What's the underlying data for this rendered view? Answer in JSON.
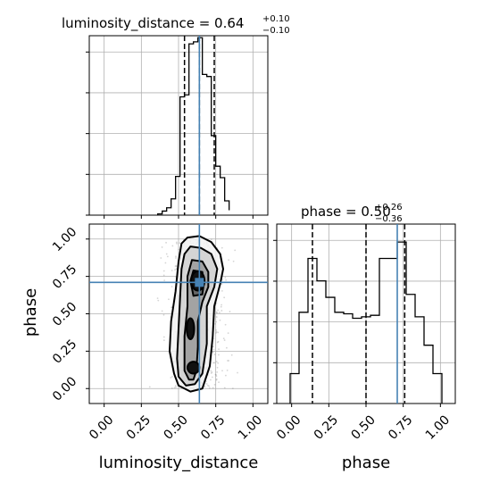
{
  "chart_data": {
    "type": "corner",
    "parameters": [
      "luminosity_distance",
      "phase"
    ],
    "truth": {
      "luminosity_distance": 0.64,
      "phase": 0.71
    },
    "grid": true,
    "panels": [
      {
        "panel": "luminosity_distance-marginal",
        "type": "histogram",
        "title": {
          "main": "luminosity_distance = 0.64",
          "sup": "+0.10",
          "sub": "−0.10"
        },
        "xlim": [
          -0.1,
          1.1
        ],
        "ylim": [
          0,
          4.4
        ],
        "bin_edges": [
          0.36,
          0.39,
          0.42,
          0.45,
          0.48,
          0.51,
          0.54,
          0.57,
          0.6,
          0.63,
          0.66,
          0.69,
          0.72,
          0.75,
          0.78,
          0.81,
          0.84
        ],
        "counts": [
          0.03,
          0.1,
          0.18,
          0.4,
          0.95,
          2.9,
          2.95,
          4.2,
          4.25,
          4.35,
          3.45,
          3.4,
          1.95,
          1.2,
          0.92,
          0.35,
          0.12
        ],
        "quantile_lines": [
          0.54,
          0.64,
          0.74
        ],
        "truth_line": 0.64
      },
      {
        "panel": "phase-marginal",
        "type": "histogram",
        "title": {
          "main": "phase = 0.50",
          "sup": "+0.26",
          "sub": "−0.36"
        },
        "xlim": [
          -0.1,
          1.1
        ],
        "ylim": [
          0,
          1.2
        ],
        "xlabel": "phase",
        "xticks": [
          "0.00",
          "0.25",
          "0.50",
          "0.75",
          "1.00"
        ],
        "bin_edges": [
          -0.01,
          0.05,
          0.11,
          0.17,
          0.23,
          0.29,
          0.35,
          0.41,
          0.47,
          0.53,
          0.59,
          0.65,
          0.71,
          0.77,
          0.83,
          0.89,
          0.95,
          1.01
        ],
        "counts": [
          0.2,
          0.61,
          0.97,
          0.82,
          0.71,
          0.61,
          0.6,
          0.57,
          0.58,
          0.59,
          0.97,
          0.97,
          1.08,
          0.73,
          0.58,
          0.39,
          0.2
        ],
        "quantile_lines": [
          0.14,
          0.5,
          0.76
        ],
        "truth_line": 0.71
      },
      {
        "panel": "phase-vs-luminosity_distance",
        "type": "scatter-contour",
        "xlim": [
          -0.1,
          1.1
        ],
        "ylim": [
          -0.1,
          1.1
        ],
        "xlabel": "luminosity_distance",
        "ylabel": "phase",
        "xticks": [
          "0.00",
          "0.25",
          "0.50",
          "0.75",
          "1.00"
        ],
        "yticks": [
          "0.00",
          "0.25",
          "0.50",
          "0.75",
          "1.00"
        ],
        "contour_levels": [
          {
            "x": [
              0.56,
              0.64,
              0.72,
              0.78,
              0.8,
              0.78,
              0.74,
              0.73,
              0.71,
              0.66,
              0.58,
              0.5,
              0.47,
              0.44,
              0.45,
              0.48,
              0.5,
              0.52
            ],
            "y": [
              1.01,
              1.02,
              0.98,
              0.9,
              0.8,
              0.7,
              0.55,
              0.35,
              0.15,
              0.0,
              -0.02,
              0.02,
              0.1,
              0.25,
              0.45,
              0.65,
              0.85,
              0.97
            ]
          },
          {
            "x": [
              0.58,
              0.65,
              0.72,
              0.76,
              0.74,
              0.69,
              0.69,
              0.66,
              0.61,
              0.55,
              0.5,
              0.49,
              0.5,
              0.51,
              0.52,
              0.54
            ],
            "y": [
              0.95,
              0.94,
              0.9,
              0.8,
              0.68,
              0.55,
              0.3,
              0.1,
              0.03,
              0.02,
              0.08,
              0.2,
              0.4,
              0.6,
              0.8,
              0.9
            ]
          },
          {
            "x": [
              0.59,
              0.66,
              0.7,
              0.7,
              0.66,
              0.63,
              0.63,
              0.62,
              0.6,
              0.57,
              0.54,
              0.54,
              0.56,
              0.56
            ],
            "y": [
              0.86,
              0.85,
              0.78,
              0.68,
              0.58,
              0.45,
              0.28,
              0.12,
              0.06,
              0.06,
              0.12,
              0.35,
              0.55,
              0.75
            ]
          },
          {
            "x": [
              0.6,
              0.66,
              0.67,
              0.66,
              0.6,
              0.58
            ],
            "y": [
              0.79,
              0.78,
              0.7,
              0.63,
              0.62,
              0.72
            ]
          }
        ],
        "density_blobs": [
          {
            "x": 0.63,
            "y": 0.72,
            "w": 0.09,
            "h": 0.13
          },
          {
            "x": 0.6,
            "y": 0.14,
            "w": 0.08,
            "h": 0.08
          },
          {
            "x": 0.58,
            "y": 0.4,
            "w": 0.05,
            "h": 0.14
          }
        ],
        "truth": {
          "x": 0.64,
          "y": 0.71
        }
      }
    ],
    "axes_bottom_ticks": [
      "0.00",
      "0.25",
      "0.50",
      "0.75",
      "1.00"
    ],
    "axes_left_ticks": [
      "0.00",
      "0.25",
      "0.50",
      "0.75",
      "1.00"
    ]
  }
}
